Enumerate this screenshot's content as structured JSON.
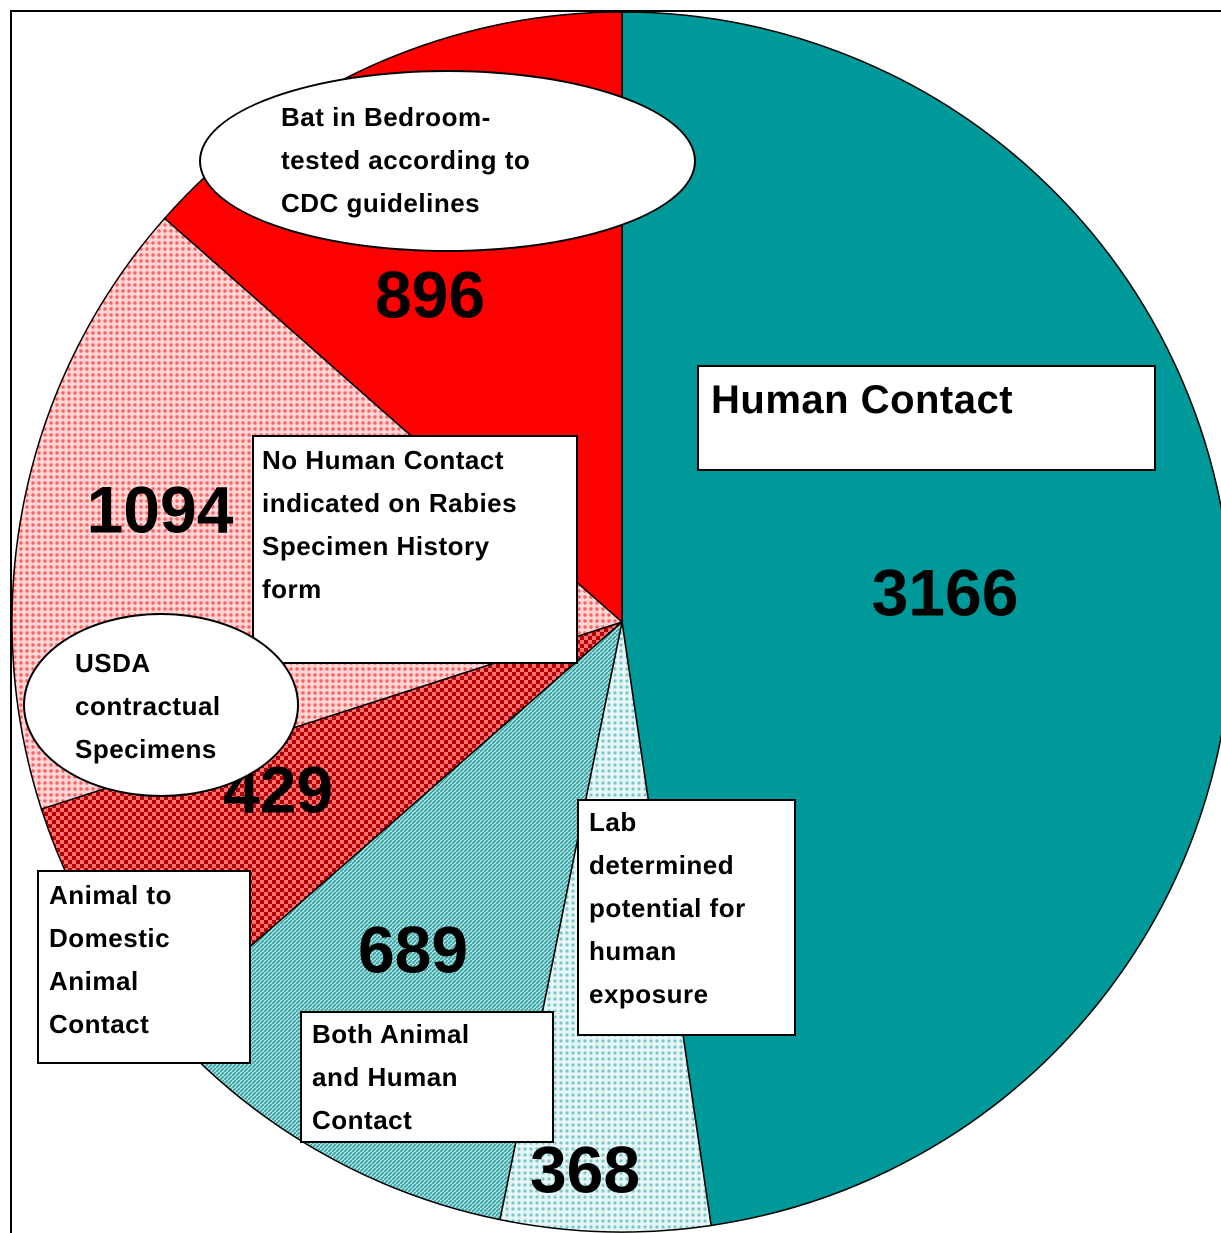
{
  "chart_data": {
    "type": "pie",
    "categories": [
      "Human Contact",
      "Lab\ndetermined\npotential for\nhuman\nexposure",
      "Both Animal\nand Human\nContact",
      "Animal to\nDomestic\nAnimal\nContact",
      "No Human Contact\nindicated on Rabies\nSpecimen History\nform",
      "Bat in Bedroom-\ntested according to\nCDC guidelines"
    ],
    "values": [
      3166,
      368,
      689,
      429,
      1094,
      896
    ],
    "colors": [
      "#009999",
      "#bfe6e6",
      "#66bdbd",
      "#b30000",
      "#ffa0a0",
      "#ff0000"
    ],
    "annotations": [
      "USDA\ncontractual\nSpecimens"
    ]
  }
}
